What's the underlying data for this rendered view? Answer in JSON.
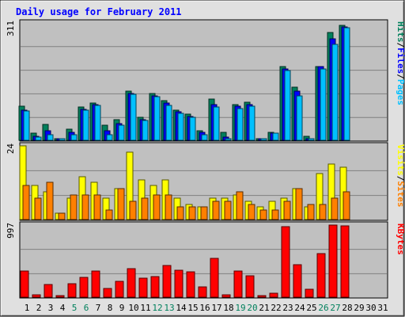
{
  "title": "Daily usage for February 2011",
  "colors": {
    "hits": "#00805c",
    "files": "#0000ff",
    "pages": "#00c0ff",
    "visits": "#ffff00",
    "sites": "#ff8000",
    "kbytes": "#ff0000",
    "weekend_label": "#00805c",
    "title": "#0000ff",
    "panel_bg": "#c0c0c0",
    "frame_bg": "#e0e0e0"
  },
  "days": [
    "1",
    "2",
    "3",
    "4",
    "5",
    "6",
    "7",
    "8",
    "9",
    "10",
    "11",
    "12",
    "13",
    "14",
    "15",
    "16",
    "17",
    "18",
    "19",
    "20",
    "21",
    "22",
    "23",
    "24",
    "25",
    "26",
    "27",
    "28",
    "29",
    "30",
    "31"
  ],
  "weekend_days": [
    "5",
    "6",
    "12",
    "13",
    "19",
    "20",
    "26",
    "27"
  ],
  "chart_data": [
    {
      "type": "bar",
      "name": "hits-files-pages",
      "categories": [
        "1",
        "2",
        "3",
        "4",
        "5",
        "6",
        "7",
        "8",
        "9",
        "10",
        "11",
        "12",
        "13",
        "14",
        "15",
        "16",
        "17",
        "18",
        "19",
        "20",
        "21",
        "22",
        "23",
        "24",
        "25",
        "26",
        "27",
        "28",
        "29",
        "30",
        "31"
      ],
      "ymax_label": "311",
      "ylim": [
        0,
        311
      ],
      "series": [
        {
          "name": "Hits",
          "values": [
            90,
            18,
            42,
            5,
            30,
            88,
            98,
            40,
            55,
            130,
            60,
            125,
            105,
            80,
            70,
            25,
            110,
            22,
            95,
            100,
            5,
            20,
            195,
            140,
            10,
            195,
            285,
            305,
            0,
            0,
            0
          ]
        },
        {
          "name": "Files",
          "values": [
            80,
            10,
            25,
            2,
            22,
            82,
            95,
            25,
            45,
            125,
            55,
            118,
            98,
            75,
            62,
            22,
            95,
            8,
            90,
            95,
            3,
            18,
            190,
            130,
            5,
            195,
            270,
            300,
            0,
            0,
            0
          ]
        },
        {
          "name": "Pages",
          "values": [
            78,
            8,
            15,
            2,
            15,
            80,
            92,
            15,
            40,
            122,
            52,
            115,
            92,
            72,
            60,
            15,
            88,
            5,
            85,
            90,
            2,
            18,
            185,
            118,
            3,
            190,
            255,
            298,
            0,
            0,
            0
          ]
        }
      ],
      "axis_labels": [
        "Pages",
        "/",
        "Files",
        "/",
        "Hits"
      ]
    },
    {
      "type": "bar",
      "name": "visits-sites",
      "categories": [
        "1",
        "2",
        "3",
        "4",
        "5",
        "6",
        "7",
        "8",
        "9",
        "10",
        "11",
        "12",
        "13",
        "14",
        "15",
        "16",
        "17",
        "18",
        "19",
        "20",
        "21",
        "22",
        "23",
        "24",
        "25",
        "26",
        "27",
        "28",
        "29",
        "30",
        "31"
      ],
      "ymax_label": "24",
      "ylim": [
        0,
        24
      ],
      "series": [
        {
          "name": "Visits",
          "values": [
            24,
            11,
            9,
            2,
            7,
            14,
            12,
            7,
            10,
            22,
            13,
            11,
            13,
            7,
            5,
            4,
            7,
            7,
            8,
            6,
            4,
            6,
            7,
            10,
            4,
            15,
            18,
            17,
            0,
            0,
            0
          ]
        },
        {
          "name": "Sites",
          "values": [
            11,
            7,
            12,
            2,
            8,
            8,
            8,
            3,
            10,
            6,
            7,
            8,
            8,
            4,
            4,
            4,
            6,
            6,
            9,
            5,
            3,
            3,
            6,
            10,
            5,
            5,
            7,
            9,
            0,
            0,
            0
          ]
        }
      ],
      "axis_labels": [
        "Sites",
        "/",
        "Visits"
      ]
    },
    {
      "type": "bar",
      "name": "kbytes",
      "categories": [
        "1",
        "2",
        "3",
        "4",
        "5",
        "6",
        "7",
        "8",
        "9",
        "10",
        "11",
        "12",
        "13",
        "14",
        "15",
        "16",
        "17",
        "18",
        "19",
        "20",
        "21",
        "22",
        "23",
        "24",
        "25",
        "26",
        "27",
        "28",
        "29",
        "30",
        "31"
      ],
      "ymax_label": "997",
      "ylim": [
        0,
        997
      ],
      "series": [
        {
          "name": "KBytes",
          "values": [
            360,
            30,
            180,
            20,
            190,
            270,
            360,
            120,
            220,
            390,
            260,
            290,
            440,
            370,
            350,
            140,
            540,
            30,
            360,
            300,
            10,
            60,
            970,
            450,
            110,
            600,
            1000,
            990,
            0,
            0,
            0
          ]
        }
      ],
      "axis_labels": [
        "KBytes"
      ]
    }
  ]
}
